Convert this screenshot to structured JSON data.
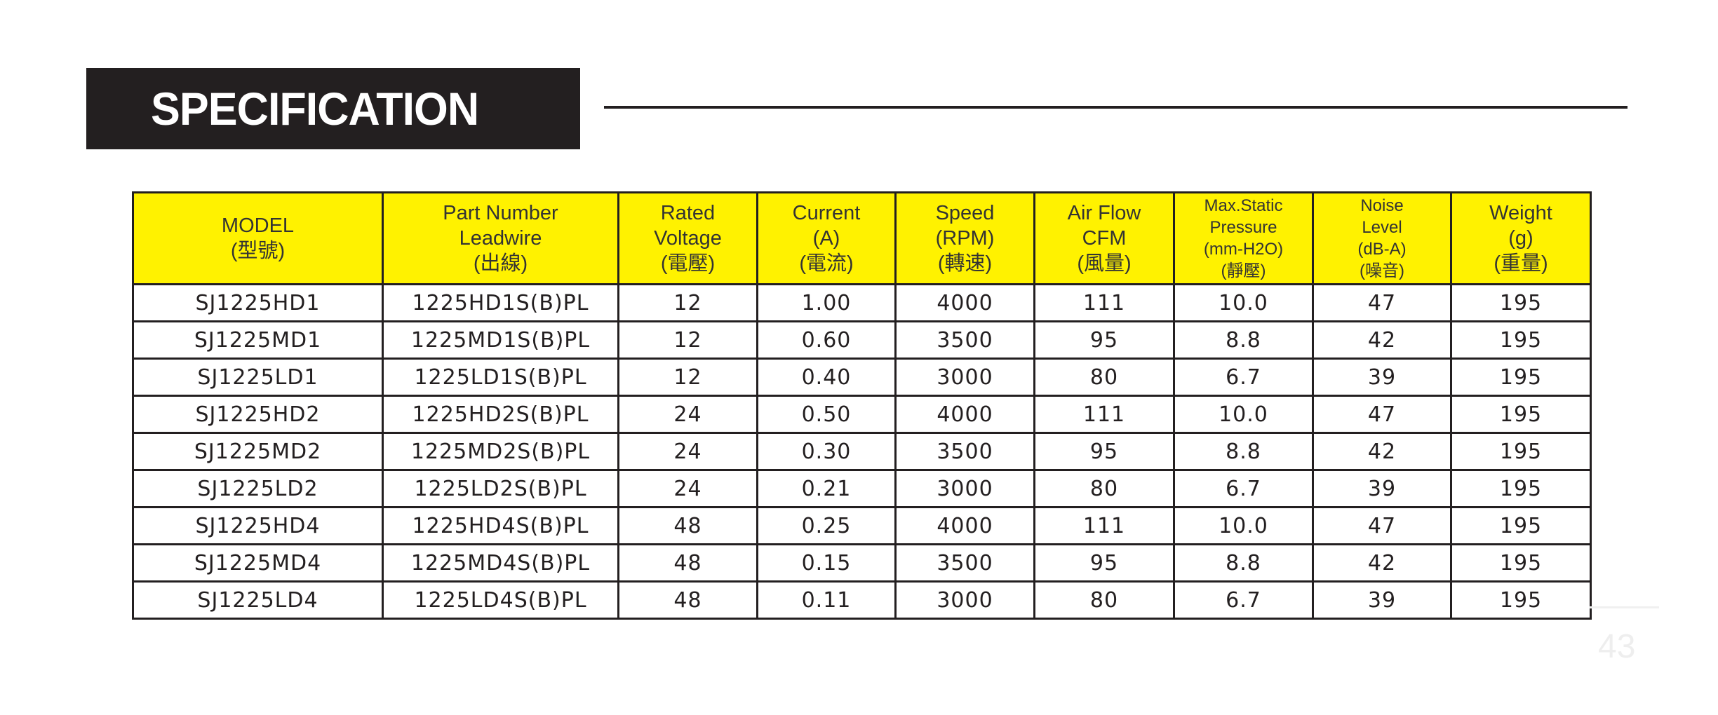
{
  "section_title": "SPECIFICATION",
  "table": {
    "headers": [
      [
        "MODEL",
        "(型號)"
      ],
      [
        "Part Number",
        "Leadwire",
        "(出線)"
      ],
      [
        "Rated",
        "Voltage",
        "(電壓)"
      ],
      [
        "Current",
        "(A)",
        "(電流)"
      ],
      [
        "Speed",
        "(RPM)",
        "(轉速)"
      ],
      [
        "Air Flow",
        "CFM",
        "(風量)"
      ],
      [
        "Max.Static",
        "Pressure",
        "(mm-H2O)",
        "(靜壓)"
      ],
      [
        "Noise",
        "Level",
        "(dB-A)",
        "(噪音)"
      ],
      [
        "Weight",
        "(g)",
        "(重量)"
      ]
    ],
    "rows": [
      [
        "SJ1225HD1",
        "1225HD1S(B)PL",
        "12",
        "1.00",
        "4000",
        "111",
        "10.0",
        "47",
        "195"
      ],
      [
        "SJ1225MD1",
        "1225MD1S(B)PL",
        "12",
        "0.60",
        "3500",
        "95",
        "8.8",
        "42",
        "195"
      ],
      [
        "SJ1225LD1",
        "1225LD1S(B)PL",
        "12",
        "0.40",
        "3000",
        "80",
        "6.7",
        "39",
        "195"
      ],
      [
        "SJ1225HD2",
        "1225HD2S(B)PL",
        "24",
        "0.50",
        "4000",
        "111",
        "10.0",
        "47",
        "195"
      ],
      [
        "SJ1225MD2",
        "1225MD2S(B)PL",
        "24",
        "0.30",
        "3500",
        "95",
        "8.8",
        "42",
        "195"
      ],
      [
        "SJ1225LD2",
        "1225LD2S(B)PL",
        "24",
        "0.21",
        "3000",
        "80",
        "6.7",
        "39",
        "195"
      ],
      [
        "SJ1225HD4",
        "1225HD4S(B)PL",
        "48",
        "0.25",
        "4000",
        "111",
        "10.0",
        "47",
        "195"
      ],
      [
        "SJ1225MD4",
        "1225MD4S(B)PL",
        "48",
        "0.15",
        "3500",
        "95",
        "8.8",
        "42",
        "195"
      ],
      [
        "SJ1225LD4",
        "1225LD4S(B)PL",
        "48",
        "0.11",
        "3000",
        "80",
        "6.7",
        "39",
        "195"
      ]
    ]
  },
  "page_number": "43",
  "colors": {
    "header_bg": "#fff200",
    "title_bg": "#231f20",
    "title_text": "#ffffff"
  }
}
